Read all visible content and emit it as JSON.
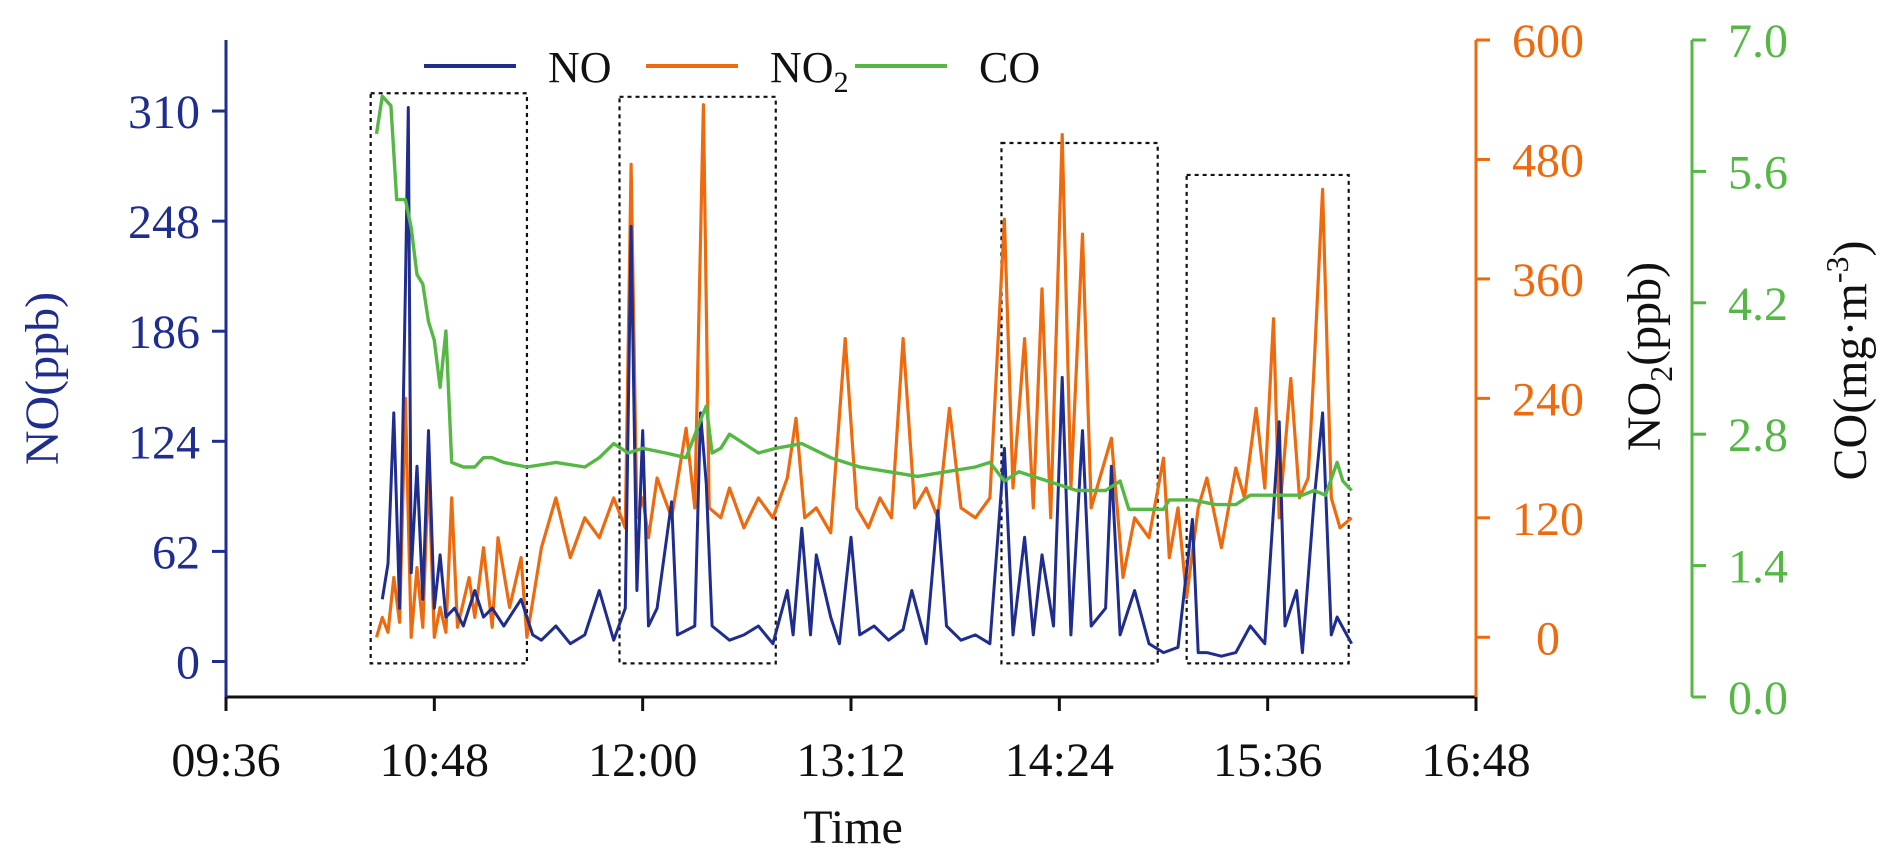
{
  "chart_data": {
    "type": "line",
    "title": "",
    "xlabel": "Time",
    "x_ticks": [
      "09:36",
      "10:48",
      "12:00",
      "13:12",
      "14:24",
      "15:36",
      "16:48"
    ],
    "xlim": [
      "09:36",
      "16:48"
    ],
    "axes": {
      "NO": {
        "label": "NO(ppb)",
        "ticks": [
          "0",
          "62",
          "124",
          "186",
          "248",
          "310"
        ],
        "ylim": [
          -20,
          350
        ],
        "color": "#1f2d8e"
      },
      "NO2": {
        "label_main": "NO",
        "label_sub": "2",
        "label_tail": "(ppb)",
        "ticks": [
          "0",
          "120",
          "240",
          "360",
          "480",
          "600"
        ],
        "ylim": [
          -60,
          600
        ],
        "color": "#ee6a0e"
      },
      "CO": {
        "label_main": "CO(mg·m",
        "label_sup": "-3",
        "label_tail": ")",
        "ticks": [
          "0.0",
          "1.4",
          "2.8",
          "4.2",
          "5.6",
          "7.0"
        ],
        "ylim": [
          0,
          7
        ],
        "color": "#56b844"
      }
    },
    "legend": {
      "placement": "top-center",
      "entries": [
        {
          "key": "NO",
          "main": "NO",
          "sub": ""
        },
        {
          "key": "NO2",
          "main": "NO",
          "sub": "2"
        },
        {
          "key": "CO",
          "main": "CO",
          "sub": ""
        }
      ]
    },
    "highlight_windows": [
      {
        "start": "10:26",
        "end": "11:20",
        "top": 320
      },
      {
        "start": "11:52",
        "end": "12:46",
        "top": 318
      },
      {
        "start": "14:04",
        "end": "14:58",
        "top": 292
      },
      {
        "start": "15:08",
        "end": "16:04",
        "top": 274
      }
    ],
    "series": [
      {
        "name": "NO",
        "axis": "NO",
        "points": [
          [
            "10:30",
            35
          ],
          [
            "10:32",
            55
          ],
          [
            "10:34",
            140
          ],
          [
            "10:36",
            30
          ],
          [
            "10:38",
            210
          ],
          [
            "10:39",
            312
          ],
          [
            "10:40",
            50
          ],
          [
            "10:42",
            110
          ],
          [
            "10:44",
            35
          ],
          [
            "10:46",
            130
          ],
          [
            "10:48",
            30
          ],
          [
            "10:50",
            60
          ],
          [
            "10:52",
            25
          ],
          [
            "10:55",
            30
          ],
          [
            "10:58",
            20
          ],
          [
            "11:02",
            40
          ],
          [
            "11:05",
            25
          ],
          [
            "11:08",
            30
          ],
          [
            "11:12",
            20
          ],
          [
            "11:18",
            35
          ],
          [
            "11:22",
            15
          ],
          [
            "11:25",
            12
          ],
          [
            "11:30",
            20
          ],
          [
            "11:35",
            10
          ],
          [
            "11:40",
            15
          ],
          [
            "11:45",
            40
          ],
          [
            "11:50",
            12
          ],
          [
            "11:54",
            30
          ],
          [
            "11:56",
            245
          ],
          [
            "11:58",
            40
          ],
          [
            "12:00",
            130
          ],
          [
            "12:02",
            20
          ],
          [
            "12:05",
            30
          ],
          [
            "12:10",
            90
          ],
          [
            "12:12",
            15
          ],
          [
            "12:18",
            20
          ],
          [
            "12:20",
            140
          ],
          [
            "12:22",
            100
          ],
          [
            "12:24",
            20
          ],
          [
            "12:30",
            12
          ],
          [
            "12:35",
            15
          ],
          [
            "12:40",
            20
          ],
          [
            "12:45",
            10
          ],
          [
            "12:50",
            40
          ],
          [
            "12:52",
            15
          ],
          [
            "12:55",
            75
          ],
          [
            "12:58",
            15
          ],
          [
            "13:00",
            60
          ],
          [
            "13:05",
            25
          ],
          [
            "13:08",
            10
          ],
          [
            "13:12",
            70
          ],
          [
            "13:15",
            15
          ],
          [
            "13:20",
            20
          ],
          [
            "13:25",
            12
          ],
          [
            "13:30",
            18
          ],
          [
            "13:33",
            40
          ],
          [
            "13:38",
            10
          ],
          [
            "13:42",
            85
          ],
          [
            "13:45",
            20
          ],
          [
            "13:50",
            12
          ],
          [
            "13:55",
            15
          ],
          [
            "14:00",
            10
          ],
          [
            "14:05",
            120
          ],
          [
            "14:08",
            15
          ],
          [
            "14:12",
            70
          ],
          [
            "14:15",
            15
          ],
          [
            "14:18",
            60
          ],
          [
            "14:22",
            20
          ],
          [
            "14:25",
            160
          ],
          [
            "14:28",
            15
          ],
          [
            "14:32",
            130
          ],
          [
            "14:35",
            20
          ],
          [
            "14:40",
            30
          ],
          [
            "14:42",
            110
          ],
          [
            "14:45",
            15
          ],
          [
            "14:50",
            40
          ],
          [
            "14:55",
            10
          ],
          [
            "15:00",
            5
          ],
          [
            "15:05",
            8
          ],
          [
            "15:10",
            80
          ],
          [
            "15:12",
            5
          ],
          [
            "15:15",
            5
          ],
          [
            "15:20",
            3
          ],
          [
            "15:25",
            5
          ],
          [
            "15:30",
            20
          ],
          [
            "15:35",
            10
          ],
          [
            "15:40",
            135
          ],
          [
            "15:42",
            20
          ],
          [
            "15:46",
            40
          ],
          [
            "15:48",
            5
          ],
          [
            "15:52",
            90
          ],
          [
            "15:55",
            140
          ],
          [
            "15:58",
            15
          ],
          [
            "16:00",
            25
          ],
          [
            "16:05",
            10
          ]
        ]
      },
      {
        "name": "NO2",
        "axis": "NO2",
        "points": [
          [
            "10:28",
            0
          ],
          [
            "10:30",
            20
          ],
          [
            "10:32",
            5
          ],
          [
            "10:34",
            60
          ],
          [
            "10:36",
            15
          ],
          [
            "10:38",
            240
          ],
          [
            "10:40",
            0
          ],
          [
            "10:42",
            70
          ],
          [
            "10:44",
            10
          ],
          [
            "10:46",
            170
          ],
          [
            "10:48",
            0
          ],
          [
            "10:50",
            30
          ],
          [
            "10:52",
            5
          ],
          [
            "10:54",
            140
          ],
          [
            "10:56",
            10
          ],
          [
            "11:00",
            60
          ],
          [
            "11:02",
            20
          ],
          [
            "11:05",
            90
          ],
          [
            "11:08",
            10
          ],
          [
            "11:10",
            100
          ],
          [
            "11:14",
            30
          ],
          [
            "11:18",
            80
          ],
          [
            "11:20",
            0
          ],
          [
            "11:25",
            90
          ],
          [
            "11:30",
            140
          ],
          [
            "11:35",
            80
          ],
          [
            "11:40",
            120
          ],
          [
            "11:45",
            100
          ],
          [
            "11:50",
            140
          ],
          [
            "11:54",
            110
          ],
          [
            "11:56",
            475
          ],
          [
            "11:58",
            120
          ],
          [
            "12:00",
            140
          ],
          [
            "12:02",
            100
          ],
          [
            "12:05",
            160
          ],
          [
            "12:10",
            120
          ],
          [
            "12:15",
            210
          ],
          [
            "12:18",
            130
          ],
          [
            "12:21",
            535
          ],
          [
            "12:23",
            130
          ],
          [
            "12:27",
            120
          ],
          [
            "12:30",
            150
          ],
          [
            "12:35",
            110
          ],
          [
            "12:40",
            140
          ],
          [
            "12:45",
            120
          ],
          [
            "12:50",
            160
          ],
          [
            "12:53",
            220
          ],
          [
            "12:56",
            120
          ],
          [
            "13:00",
            130
          ],
          [
            "13:05",
            105
          ],
          [
            "13:10",
            300
          ],
          [
            "13:14",
            130
          ],
          [
            "13:18",
            110
          ],
          [
            "13:22",
            140
          ],
          [
            "13:26",
            120
          ],
          [
            "13:30",
            300
          ],
          [
            "13:34",
            130
          ],
          [
            "13:38",
            150
          ],
          [
            "13:42",
            120
          ],
          [
            "13:46",
            230
          ],
          [
            "13:50",
            130
          ],
          [
            "13:55",
            120
          ],
          [
            "14:00",
            140
          ],
          [
            "14:05",
            420
          ],
          [
            "14:08",
            150
          ],
          [
            "14:12",
            300
          ],
          [
            "14:15",
            130
          ],
          [
            "14:18",
            350
          ],
          [
            "14:21",
            120
          ],
          [
            "14:25",
            505
          ],
          [
            "14:28",
            150
          ],
          [
            "14:32",
            405
          ],
          [
            "14:35",
            130
          ],
          [
            "14:38",
            160
          ],
          [
            "14:42",
            200
          ],
          [
            "14:46",
            60
          ],
          [
            "14:50",
            120
          ],
          [
            "14:55",
            100
          ],
          [
            "15:00",
            180
          ],
          [
            "15:02",
            80
          ],
          [
            "15:05",
            130
          ],
          [
            "15:08",
            40
          ],
          [
            "15:12",
            130
          ],
          [
            "15:15",
            160
          ],
          [
            "15:20",
            90
          ],
          [
            "15:25",
            170
          ],
          [
            "15:28",
            140
          ],
          [
            "15:32",
            230
          ],
          [
            "15:35",
            150
          ],
          [
            "15:38",
            320
          ],
          [
            "15:40",
            120
          ],
          [
            "15:44",
            260
          ],
          [
            "15:47",
            140
          ],
          [
            "15:50",
            160
          ],
          [
            "15:52",
            270
          ],
          [
            "15:55",
            450
          ],
          [
            "15:58",
            140
          ],
          [
            "16:01",
            110
          ],
          [
            "16:05",
            120
          ]
        ]
      },
      {
        "name": "CO",
        "axis": "CO",
        "points": [
          [
            "10:28",
            6.0
          ],
          [
            "10:30",
            6.4
          ],
          [
            "10:33",
            6.3
          ],
          [
            "10:35",
            5.3
          ],
          [
            "10:38",
            5.3
          ],
          [
            "10:40",
            5.0
          ],
          [
            "10:42",
            4.5
          ],
          [
            "10:44",
            4.4
          ],
          [
            "10:46",
            4.0
          ],
          [
            "10:48",
            3.8
          ],
          [
            "10:50",
            3.3
          ],
          [
            "10:52",
            3.9
          ],
          [
            "10:54",
            2.5
          ],
          [
            "10:58",
            2.45
          ],
          [
            "11:02",
            2.45
          ],
          [
            "11:05",
            2.55
          ],
          [
            "11:08",
            2.55
          ],
          [
            "11:12",
            2.5
          ],
          [
            "11:20",
            2.45
          ],
          [
            "11:30",
            2.5
          ],
          [
            "11:40",
            2.45
          ],
          [
            "11:45",
            2.55
          ],
          [
            "11:50",
            2.7
          ],
          [
            "11:55",
            2.6
          ],
          [
            "12:00",
            2.65
          ],
          [
            "12:08",
            2.6
          ],
          [
            "12:15",
            2.55
          ],
          [
            "12:20",
            2.95
          ],
          [
            "12:22",
            3.1
          ],
          [
            "12:24",
            2.6
          ],
          [
            "12:27",
            2.65
          ],
          [
            "12:30",
            2.8
          ],
          [
            "12:40",
            2.6
          ],
          [
            "12:46",
            2.65
          ],
          [
            "12:55",
            2.7
          ],
          [
            "13:05",
            2.55
          ],
          [
            "13:15",
            2.45
          ],
          [
            "13:25",
            2.4
          ],
          [
            "13:35",
            2.35
          ],
          [
            "13:45",
            2.4
          ],
          [
            "13:55",
            2.45
          ],
          [
            "14:00",
            2.5
          ],
          [
            "14:05",
            2.3
          ],
          [
            "14:10",
            2.4
          ],
          [
            "14:20",
            2.3
          ],
          [
            "14:30",
            2.2
          ],
          [
            "14:40",
            2.2
          ],
          [
            "14:45",
            2.3
          ],
          [
            "14:48",
            2.0
          ],
          [
            "14:52",
            2.0
          ],
          [
            "15:00",
            2.0
          ],
          [
            "15:02",
            2.1
          ],
          [
            "15:10",
            2.1
          ],
          [
            "15:18",
            2.05
          ],
          [
            "15:25",
            2.05
          ],
          [
            "15:30",
            2.15
          ],
          [
            "15:40",
            2.15
          ],
          [
            "15:48",
            2.15
          ],
          [
            "15:52",
            2.2
          ],
          [
            "15:56",
            2.15
          ],
          [
            "16:00",
            2.5
          ],
          [
            "16:02",
            2.3
          ],
          [
            "16:05",
            2.2
          ]
        ]
      }
    ]
  }
}
